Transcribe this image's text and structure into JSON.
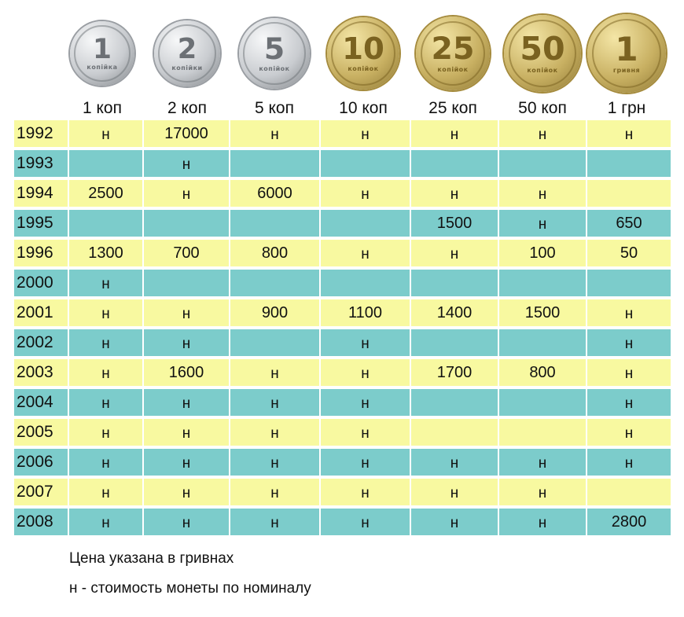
{
  "denominations": [
    {
      "label": "1 коп",
      "coin_number": "1",
      "coin_word": "копійка",
      "metal": "silver"
    },
    {
      "label": "2 коп",
      "coin_number": "2",
      "coin_word": "копійки",
      "metal": "silver"
    },
    {
      "label": "5 коп",
      "coin_number": "5",
      "coin_word": "копійок",
      "metal": "silver"
    },
    {
      "label": "10 коп",
      "coin_number": "10",
      "coin_word": "копійок",
      "metal": "gold"
    },
    {
      "label": "25 коп",
      "coin_number": "25",
      "coin_word": "копійок",
      "metal": "gold"
    },
    {
      "label": "50 коп",
      "coin_number": "50",
      "coin_word": "копійок",
      "metal": "gold"
    },
    {
      "label": "1 грн",
      "coin_number": "1",
      "coin_word": "гривня",
      "metal": "gold"
    }
  ],
  "colors": {
    "row_yellow": "#f8f9a0",
    "row_blue": "#7ccccb",
    "silver": "#c9ccd0",
    "gold": "#c8b062"
  },
  "rows": [
    {
      "year": "1992",
      "cells": [
        "н",
        "17000",
        "н",
        "н",
        "н",
        "н",
        "н"
      ]
    },
    {
      "year": "1993",
      "cells": [
        "",
        "н",
        "",
        "",
        "",
        "",
        ""
      ]
    },
    {
      "year": "1994",
      "cells": [
        "2500",
        "н",
        "6000",
        "н",
        "н",
        "н",
        ""
      ]
    },
    {
      "year": "1995",
      "cells": [
        "",
        "",
        "",
        "",
        "1500",
        "н",
        "650"
      ]
    },
    {
      "year": "1996",
      "cells": [
        "1300",
        "700",
        "800",
        "н",
        "н",
        "100",
        "50"
      ]
    },
    {
      "year": "2000",
      "cells": [
        "н",
        "",
        "",
        "",
        "",
        "",
        ""
      ]
    },
    {
      "year": "2001",
      "cells": [
        "н",
        "н",
        "900",
        "1100",
        "1400",
        "1500",
        "н"
      ]
    },
    {
      "year": "2002",
      "cells": [
        "н",
        "н",
        "",
        "н",
        "",
        "",
        "н"
      ]
    },
    {
      "year": "2003",
      "cells": [
        "н",
        "1600",
        "н",
        "н",
        "1700",
        "800",
        "н"
      ]
    },
    {
      "year": "2004",
      "cells": [
        "н",
        "н",
        "н",
        "н",
        "",
        "",
        "н"
      ]
    },
    {
      "year": "2005",
      "cells": [
        "н",
        "н",
        "н",
        "н",
        "",
        "",
        "н"
      ]
    },
    {
      "year": "2006",
      "cells": [
        "н",
        "н",
        "н",
        "н",
        "н",
        "н",
        "н"
      ]
    },
    {
      "year": "2007",
      "cells": [
        "н",
        "н",
        "н",
        "н",
        "н",
        "н",
        ""
      ]
    },
    {
      "year": "2008",
      "cells": [
        "н",
        "н",
        "н",
        "н",
        "н",
        "н",
        "2800"
      ]
    }
  ],
  "notes": {
    "price_note": "Цена указана в гривнах",
    "legend_note": "н - стоимость монеты по номиналу"
  }
}
